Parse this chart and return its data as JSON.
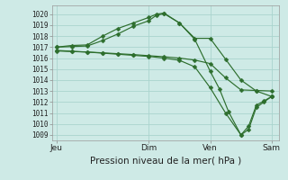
{
  "background_color": "#ceeae6",
  "grid_color": "#aad4ce",
  "line_color": "#2d6e2d",
  "xlabel": "Pression niveau de la mer( hPa )",
  "ylim": [
    1008.5,
    1020.8
  ],
  "yticks": [
    1009,
    1010,
    1011,
    1012,
    1013,
    1014,
    1015,
    1016,
    1017,
    1018,
    1019,
    1020
  ],
  "xtick_labels": [
    "Jeu",
    "Dim",
    "Ven",
    "Sam"
  ],
  "xtick_positions": [
    0,
    3,
    5,
    7
  ],
  "series": [
    {
      "x": [
        0,
        0.5,
        1,
        1.5,
        2,
        2.5,
        3,
        3.25,
        3.5,
        4,
        4.5,
        5,
        5.5,
        6,
        6.5,
        7
      ],
      "y": [
        1017.0,
        1017.15,
        1017.2,
        1018.0,
        1018.7,
        1019.2,
        1019.7,
        1020.0,
        1020.1,
        1019.2,
        1017.8,
        1017.8,
        1015.9,
        1014.0,
        1013.0,
        1012.5
      ]
    },
    {
      "x": [
        0,
        0.5,
        1,
        1.5,
        2,
        2.5,
        3,
        3.25,
        3.5,
        4,
        4.5,
        5,
        5.3,
        5.6,
        6,
        6.25,
        6.5,
        6.75,
        7
      ],
      "y": [
        1017.0,
        1017.05,
        1017.1,
        1017.6,
        1018.2,
        1018.9,
        1019.4,
        1019.9,
        1020.05,
        1019.2,
        1017.7,
        1014.8,
        1013.2,
        1011.1,
        1009.0,
        1009.8,
        1011.7,
        1012.1,
        1012.5
      ]
    },
    {
      "x": [
        0,
        0.5,
        1,
        1.5,
        2,
        2.5,
        3,
        3.5,
        4,
        4.5,
        5,
        5.5,
        6,
        6.25,
        6.5,
        6.75,
        7
      ],
      "y": [
        1016.7,
        1016.62,
        1016.55,
        1016.45,
        1016.35,
        1016.25,
        1016.15,
        1016.0,
        1015.8,
        1015.2,
        1013.3,
        1011.0,
        1009.0,
        1009.5,
        1011.5,
        1012.0,
        1012.5
      ]
    },
    {
      "x": [
        0,
        0.5,
        1,
        1.5,
        2,
        2.5,
        3,
        3.5,
        4,
        4.5,
        5,
        5.5,
        6,
        6.5,
        7
      ],
      "y": [
        1016.65,
        1016.6,
        1016.55,
        1016.48,
        1016.4,
        1016.32,
        1016.22,
        1016.12,
        1016.0,
        1015.82,
        1015.5,
        1014.2,
        1013.1,
        1013.05,
        1013.0
      ]
    }
  ]
}
